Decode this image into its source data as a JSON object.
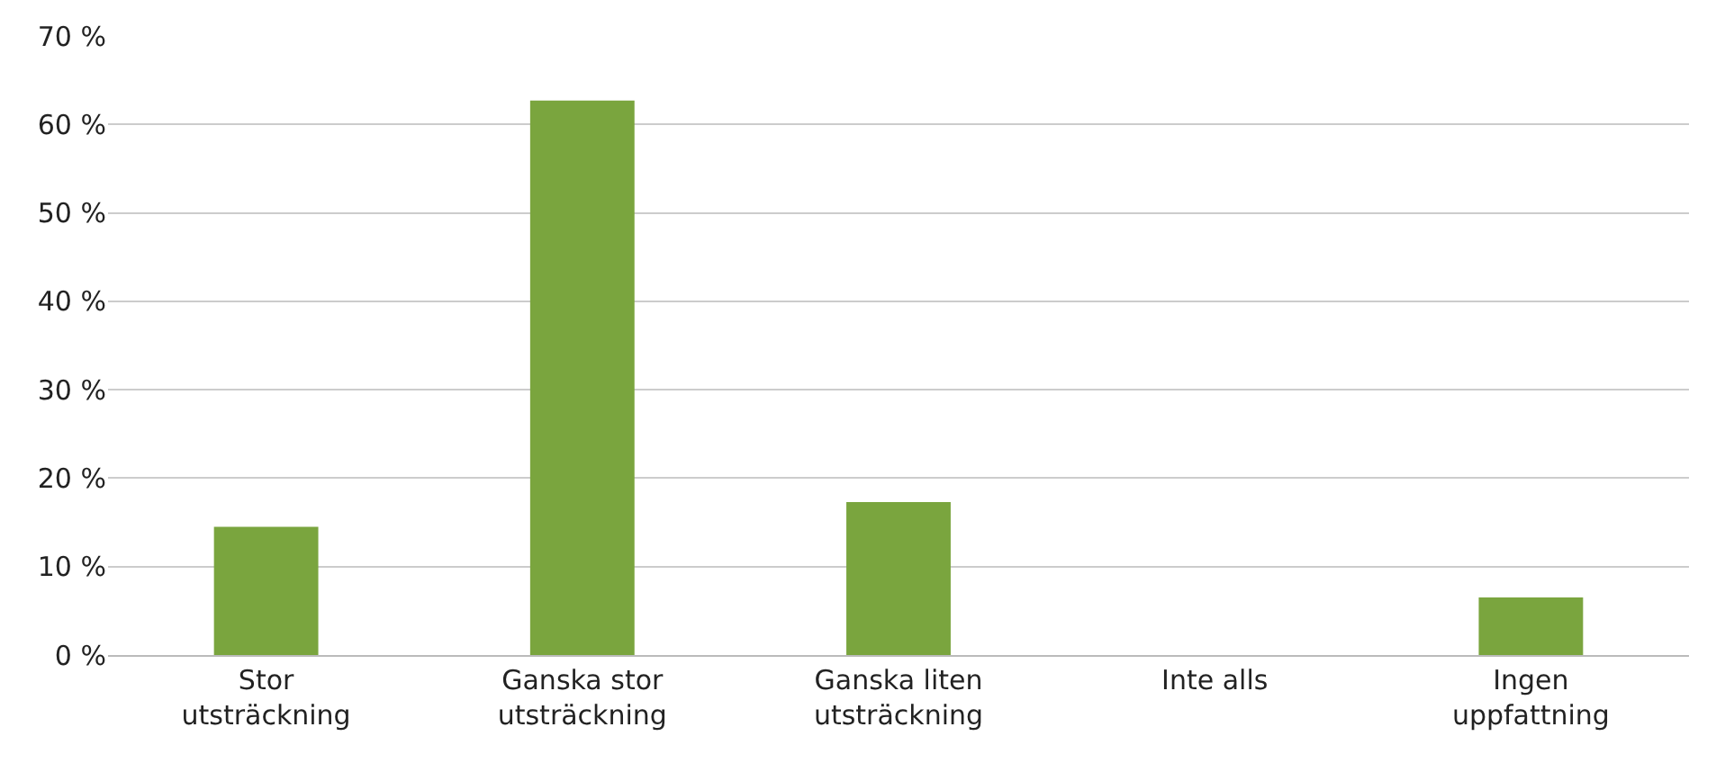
{
  "chart_data": {
    "type": "bar",
    "categories": [
      "Stor\nutsträckning",
      "Ganska stor\nutsträckning",
      "Ganska liten\nutsträckning",
      "Inte alls",
      "Ingen\nuppfattning"
    ],
    "values": [
      14.5,
      62.7,
      17.3,
      0,
      6.5
    ],
    "color": "#7aa53e",
    "ylim": [
      0,
      70
    ],
    "yticks": [
      {
        "value": 0,
        "label": "0 %"
      },
      {
        "value": 10,
        "label": "10 %"
      },
      {
        "value": 20,
        "label": "20 %"
      },
      {
        "value": 30,
        "label": "30 %"
      },
      {
        "value": 40,
        "label": "40 %"
      },
      {
        "value": 50,
        "label": "50 %"
      },
      {
        "value": 60,
        "label": "60 %"
      },
      {
        "value": 70,
        "label": "70 %"
      }
    ],
    "grid": "y"
  }
}
